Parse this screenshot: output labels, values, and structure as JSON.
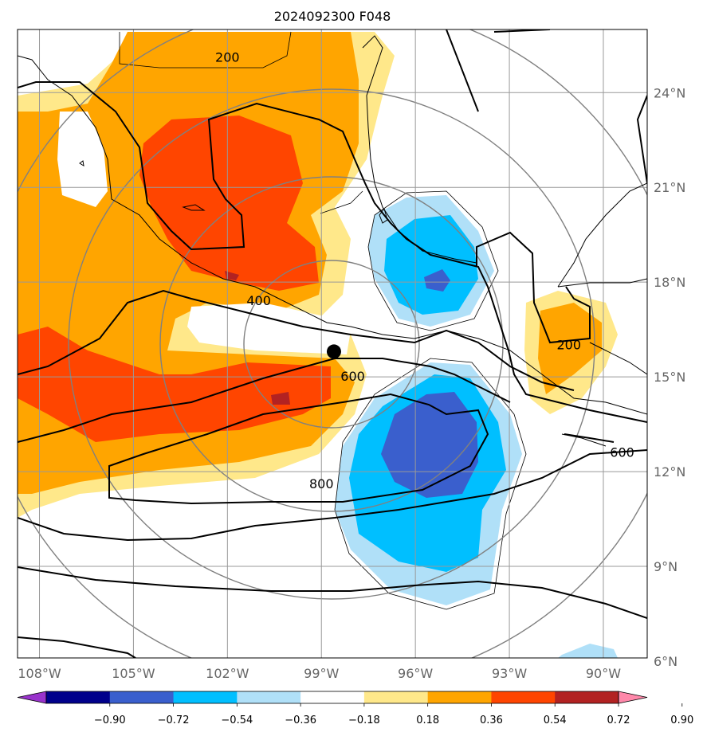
{
  "title": "2024092300 F048",
  "chart_data": {
    "type": "contour-map",
    "title": "2024092300 F048",
    "lon_ticks": [
      "108°W",
      "105°W",
      "102°W",
      "99°W",
      "96°W",
      "93°W",
      "90°W"
    ],
    "lat_ticks": [
      "6°N",
      "9°N",
      "12°N",
      "15°N",
      "18°N",
      "21°N",
      "24°N"
    ],
    "lon_range": [
      -108.7,
      -88.6
    ],
    "lat_range": [
      6.1,
      26.0
    ],
    "grid": true,
    "center_marker": {
      "lon": -98.6,
      "lat": 15.8
    },
    "shading_levels": [
      "-0.90",
      "-0.72",
      "-0.54",
      "-0.36",
      "-0.18",
      "0.18",
      "0.36",
      "0.54",
      "0.72",
      "0.90"
    ],
    "shading_colors": [
      "#9933cc",
      "#00008b",
      "#3a5fcd",
      "#00bfff",
      "#b0e0f8",
      "#ffffff",
      "#ffe88a",
      "#ffa500",
      "#ff4500",
      "#b22222",
      "#ff88aa"
    ],
    "contour_labels": [
      {
        "text": "200",
        "lon": -102.0,
        "lat": 25.1
      },
      {
        "text": "400",
        "lon": -101.0,
        "lat": 17.4
      },
      {
        "text": "600",
        "lon": -98.0,
        "lat": 15.0
      },
      {
        "text": "800",
        "lon": -99.0,
        "lat": 11.6
      },
      {
        "text": "200",
        "lon": -91.1,
        "lat": 16.0
      },
      {
        "text": "600",
        "lon": -89.4,
        "lat": 12.6
      }
    ]
  }
}
